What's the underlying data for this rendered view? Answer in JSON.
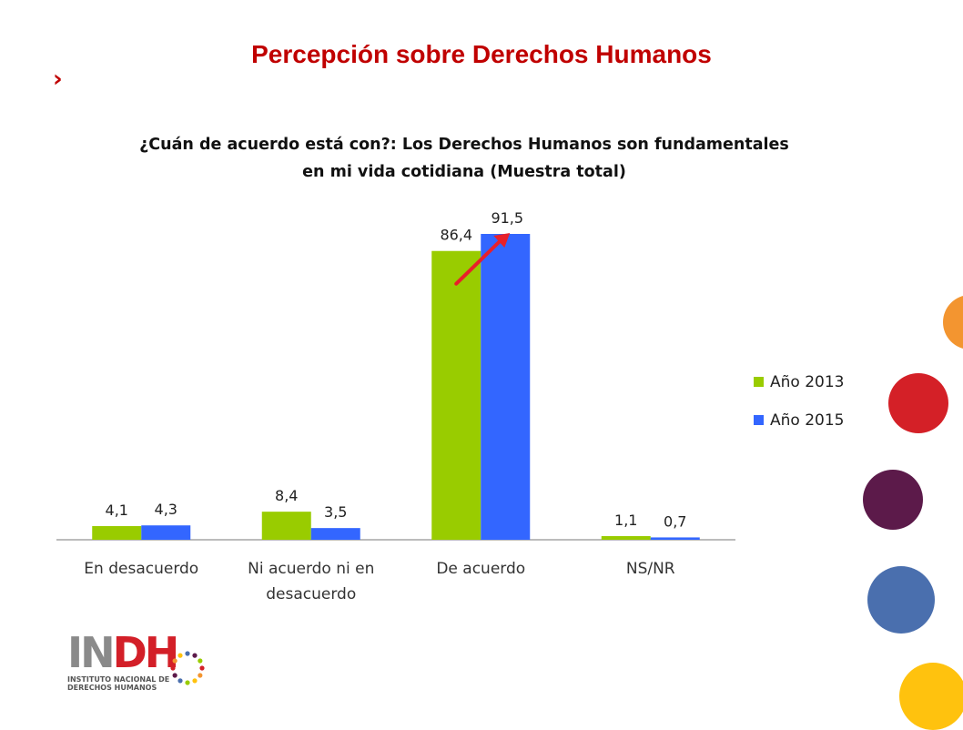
{
  "slide": {
    "title": "Percepción sobre Derechos Humanos",
    "bullet_glyph": "›"
  },
  "chart_data": {
    "type": "bar",
    "title_lines": [
      "¿Cuán de acuerdo está con?: Los Derechos Humanos son fundamentales",
      "en mi vida cotidiana (Muestra total)"
    ],
    "categories": [
      [
        "En desacuerdo"
      ],
      [
        "Ni acuerdo ni en",
        "desacuerdo"
      ],
      [
        "De acuerdo"
      ],
      [
        "NS/NR"
      ]
    ],
    "series": [
      {
        "name": "Año 2013",
        "color": "#99cc00",
        "values": [
          4.1,
          8.4,
          86.4,
          1.1
        ],
        "labels": [
          "4,1",
          "8,4",
          "86,4",
          "1,1"
        ]
      },
      {
        "name": "Año 2015",
        "color": "#3366ff",
        "values": [
          4.3,
          3.5,
          91.5,
          0.7
        ],
        "labels": [
          "4,3",
          "3,5",
          "91,5",
          "0,7"
        ]
      }
    ],
    "ylim": [
      0,
      100
    ],
    "grid": false,
    "legend_position": "right",
    "annotation": {
      "type": "arrow",
      "color": "#e8202a",
      "points_to": "De acuerdo / Año 2015"
    }
  },
  "logo": {
    "text_gray_1": "IN",
    "text_red": "DH",
    "text_gray_2": "",
    "sub_line_1": "INSTITUTO NACIONAL DE",
    "sub_line_2": "DERECHOS HUMANOS"
  },
  "decoration": {
    "circle_colors": [
      "#f39530",
      "#d42027",
      "#5c1a4a",
      "#4a6fae",
      "#ffc20e"
    ]
  }
}
